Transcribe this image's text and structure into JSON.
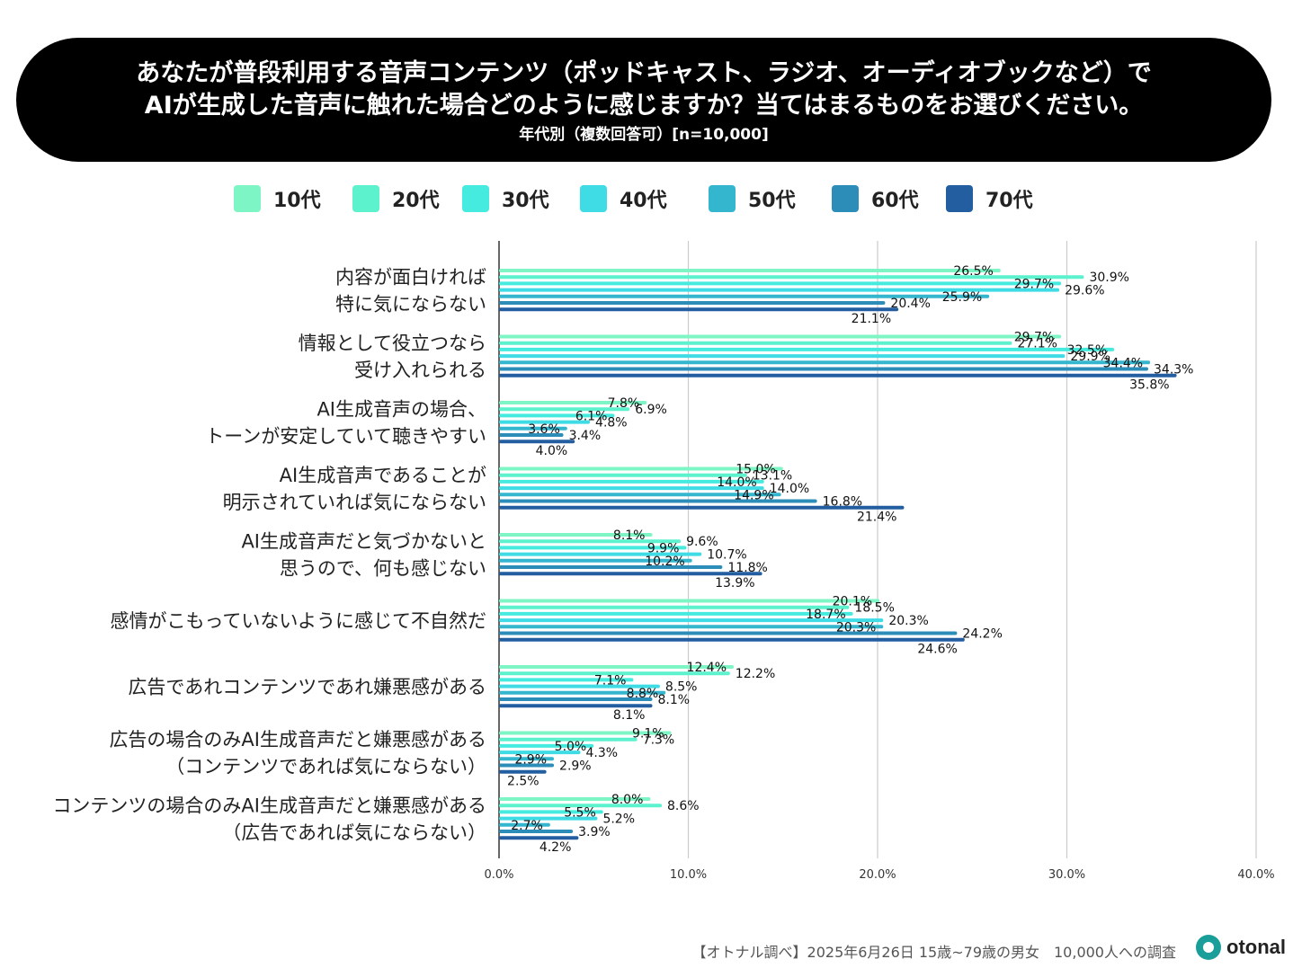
{
  "title": {
    "line1": "あなたが普段利用する音声コンテンツ（ポッドキャスト、ラジオ、オーディオブックなど）で",
    "line2": "AIが生成した音声に触れた場合どのように感じますか？当てはまるものをお選びください。",
    "subtitle": "年代別（複数回答可）[n=10,000]"
  },
  "footer": {
    "source": "【オトナル調べ】2025年6月26日 15歳~79歳の男女　10,000人への調査",
    "brand": "otonal"
  },
  "colors": {
    "title_bg": "#000000",
    "series": [
      "#7EF5C4",
      "#5CF2CD",
      "#45EBDE",
      "#3FDCE6",
      "#35B6CF",
      "#2B8DB8",
      "#225EA0"
    ],
    "grid": "#cccccc",
    "brand": "#1a9e9a"
  },
  "chart_data": {
    "type": "bar",
    "orientation": "horizontal",
    "xlim": [
      0,
      40
    ],
    "ticks": [
      0,
      10,
      20,
      30,
      40
    ],
    "tick_labels": [
      "0.0%",
      "10.0%",
      "20.0%",
      "30.0%",
      "40.0%"
    ],
    "categories": [
      [
        "内容が面白ければ",
        "特に気にならない"
      ],
      [
        "情報として役立つなら",
        "受け入れられる"
      ],
      [
        "AI生成音声の場合、",
        "トーンが安定していて聴きやすい"
      ],
      [
        "AI生成音声であることが",
        "明示されていれば気にならない"
      ],
      [
        "AI生成音声だと気づかないと",
        "思うので、何も感じない"
      ],
      [
        "感情がこもっていないように感じて不自然だ"
      ],
      [
        "広告であれコンテンツであれ嫌悪感がある"
      ],
      [
        "広告の場合のみAI生成音声だと嫌悪感がある",
        "（コンテンツであれば気にならない）"
      ],
      [
        "コンテンツの場合のみAI生成音声だと嫌悪感がある",
        "（広告であれば気にならない）"
      ]
    ],
    "series": [
      {
        "name": "10代",
        "values": [
          26.5,
          29.7,
          7.8,
          15.0,
          8.1,
          20.1,
          12.4,
          9.1,
          8.0
        ]
      },
      {
        "name": "20代",
        "values": [
          30.9,
          27.1,
          6.9,
          13.1,
          9.6,
          18.5,
          12.2,
          7.3,
          8.6
        ]
      },
      {
        "name": "30代",
        "values": [
          29.7,
          32.5,
          6.1,
          14.0,
          9.9,
          18.7,
          7.1,
          5.0,
          5.5
        ]
      },
      {
        "name": "40代",
        "values": [
          29.6,
          29.9,
          4.8,
          14.0,
          10.7,
          20.3,
          8.5,
          4.3,
          5.2
        ]
      },
      {
        "name": "50代",
        "values": [
          25.9,
          34.4,
          3.6,
          14.9,
          10.2,
          20.3,
          8.8,
          2.9,
          2.7
        ]
      },
      {
        "name": "60代",
        "values": [
          20.4,
          34.3,
          3.4,
          16.8,
          11.8,
          24.2,
          8.1,
          2.9,
          3.9
        ]
      },
      {
        "name": "70代",
        "values": [
          21.1,
          35.8,
          4.0,
          21.4,
          13.9,
          24.6,
          8.1,
          2.5,
          4.2
        ]
      }
    ],
    "value_labels": [
      [
        "26.5%",
        "30.9%",
        "29.7%",
        "29.6%",
        "25.9%",
        "20.4%",
        "21.1%"
      ],
      [
        "29.7%",
        "27.1%",
        "32.5%",
        "29.9%",
        "34.4%",
        "34.3%",
        "35.8%"
      ],
      [
        "7.8%",
        "6.9%",
        "6.1%",
        "4.8%",
        "3.6%",
        "3.4%",
        "4.0%"
      ],
      [
        "15.0%",
        "13.1%",
        "14.0%",
        "14.0%",
        "14.9%",
        "16.8%",
        "21.4%"
      ],
      [
        "8.1%",
        "9.6%",
        "9.9%",
        "10.7%",
        "10.2%",
        "11.8%",
        "13.9%"
      ],
      [
        "20.1%",
        "18.5%",
        "18.7%",
        "20.3%",
        "20.3%",
        "24.2%",
        "24.6%"
      ],
      [
        "12.4%",
        "12.2%",
        "7.1%",
        "8.5%",
        "8.8%",
        "8.1%",
        "8.1%"
      ],
      [
        "9.1%",
        "7.3%",
        "5.0%",
        "4.3%",
        "2.9%",
        "2.9%",
        "2.5%"
      ],
      [
        "8.0%",
        "8.6%",
        "5.5%",
        "5.2%",
        "2.7%",
        "3.9%",
        "4.2%"
      ]
    ],
    "legend_position": "top",
    "grid": true
  }
}
